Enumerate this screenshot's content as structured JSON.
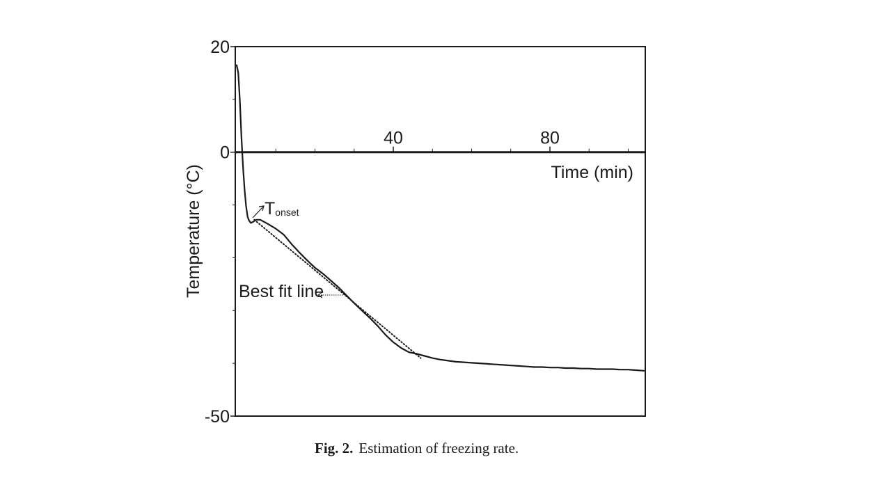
{
  "chart_data": {
    "type": "line",
    "x_axis": {
      "label": "Time (min)",
      "ticks": [
        40,
        80
      ],
      "range": [
        0,
        104
      ],
      "crosses_y_at": 0
    },
    "y_axis": {
      "label": "Temperature (°C)",
      "ticks": [
        20,
        0,
        -50
      ],
      "range": [
        -50,
        20
      ]
    },
    "series": [
      {
        "style": "solid",
        "x": [
          0.0,
          0.4,
          0.8,
          1.2,
          1.6,
          2.0,
          2.4,
          2.8,
          3.2,
          3.6,
          4.2,
          5.0,
          6.0,
          8.0,
          10.0,
          12.0,
          14.0,
          16.0,
          18.0,
          20.0,
          22.0,
          24.0,
          26.0,
          28.0,
          30.0,
          32.0,
          34.0,
          36.0,
          38.0,
          40.0,
          42.0,
          44.0,
          46.0,
          48.0,
          50.0,
          52.0,
          54.0,
          56.0,
          58.0,
          60.0,
          62.0,
          64.0,
          66.0,
          68.0,
          70.0,
          72.0,
          74.0,
          76.0,
          78.0,
          80.0,
          82.0,
          84.0,
          86.0,
          88.0,
          90.0,
          92.0,
          94.0,
          96.0,
          98.0,
          100.0,
          102.0,
          104.0
        ],
        "y": [
          16.5,
          15.0,
          10.0,
          3.0,
          -2.5,
          -7.0,
          -10.2,
          -12.3,
          -13.0,
          -13.4,
          -13.2,
          -12.8,
          -12.8,
          -13.6,
          -14.5,
          -15.6,
          -17.4,
          -19.0,
          -20.5,
          -21.9,
          -23.0,
          -24.3,
          -25.6,
          -27.1,
          -28.6,
          -30.0,
          -31.4,
          -32.9,
          -34.6,
          -36.0,
          -37.1,
          -37.9,
          -38.2,
          -38.6,
          -39.0,
          -39.3,
          -39.5,
          -39.7,
          -39.8,
          -39.9,
          -40.0,
          -40.1,
          -40.2,
          -40.3,
          -40.4,
          -40.5,
          -40.6,
          -40.7,
          -40.7,
          -40.8,
          -40.8,
          -40.9,
          -40.9,
          -41.0,
          -41.0,
          -41.1,
          -41.1,
          -41.1,
          -41.2,
          -41.2,
          -41.3,
          -41.4
        ]
      },
      {
        "name": "Best fit line",
        "style": "dotted",
        "x": [
          4.5,
          47.0
        ],
        "y": [
          -12.8,
          -39.0
        ]
      }
    ],
    "annotations": [
      {
        "text": "T",
        "subscript": "onset",
        "points_to": {
          "x": 4.5,
          "y": -12.8
        }
      },
      {
        "text": "Best fit line",
        "points_to": {
          "x": 28.0,
          "y": -27.1
        }
      }
    ]
  },
  "caption": {
    "label": "Fig. 2.",
    "text": "Estimation of freezing rate."
  },
  "colors": {
    "ink": "#1a1a1a",
    "background": "#ffffff"
  }
}
